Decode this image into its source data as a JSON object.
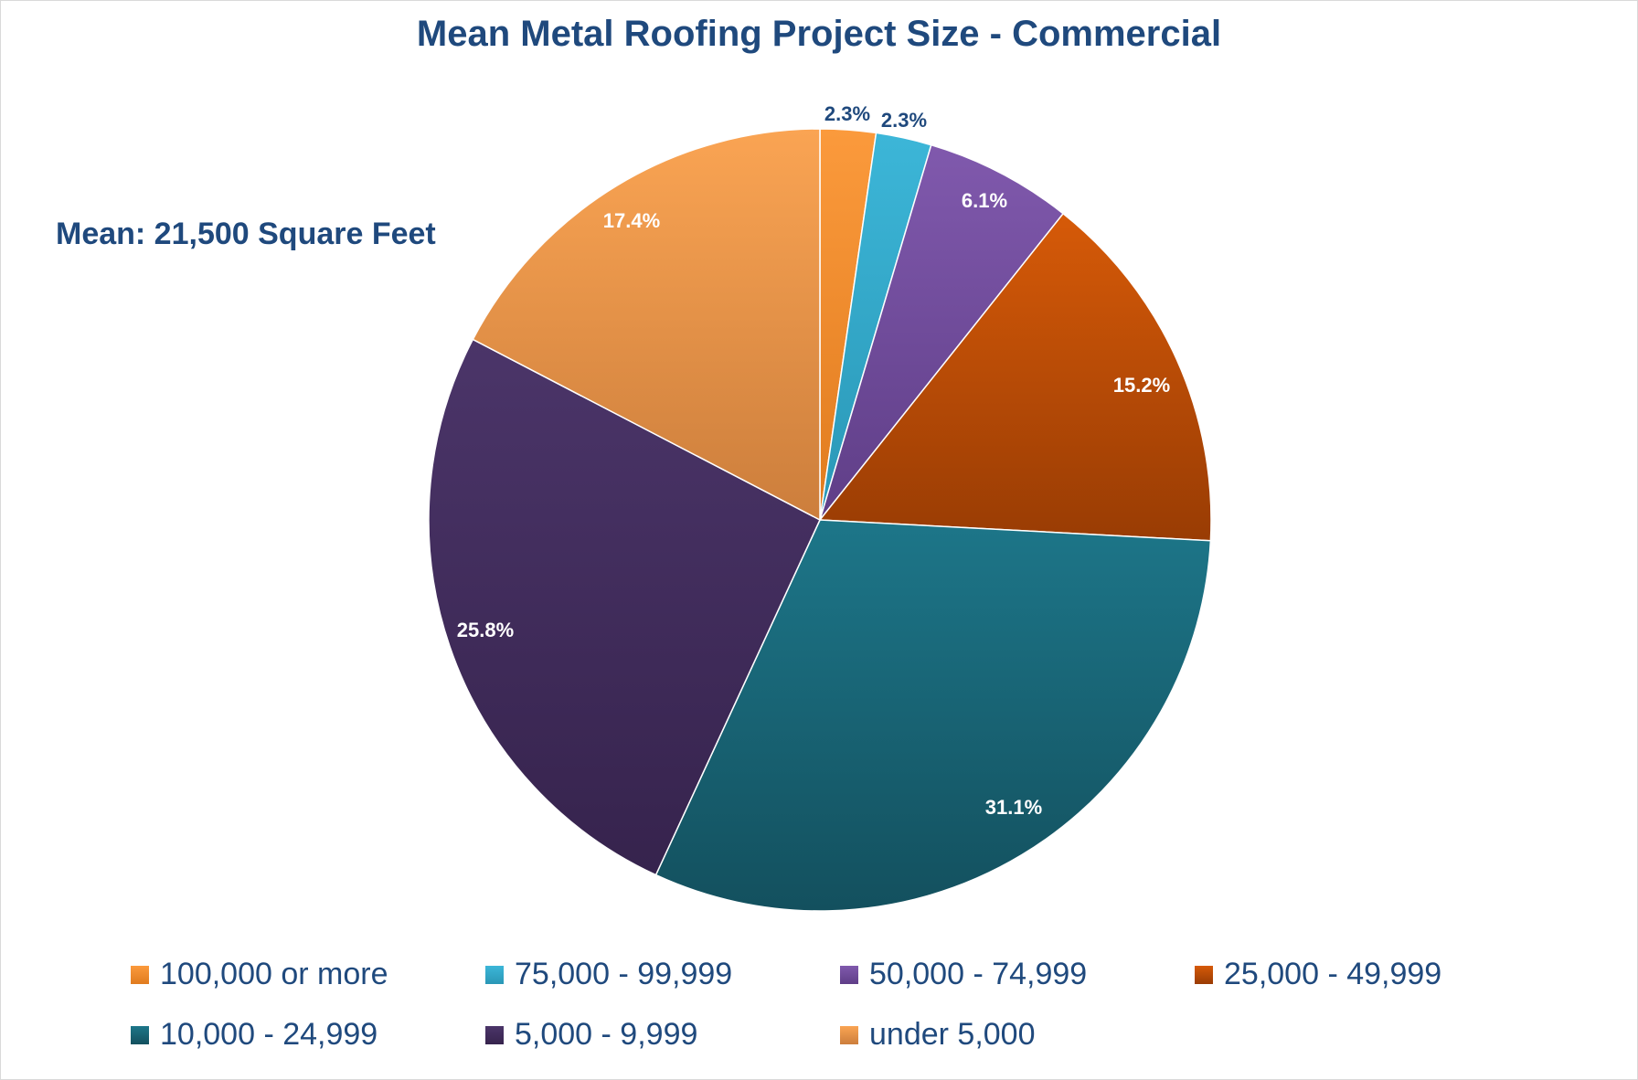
{
  "chart_data": {
    "type": "pie",
    "title": "Mean Metal Roofing Project Size - Commercial",
    "annotation": "Mean: 21,500 Square Feet",
    "start_angle_deg": 0,
    "direction": "clockwise",
    "legend_position": "bottom",
    "slices": [
      {
        "label": "100,000 or more",
        "value": 2.3,
        "display": "2.3%",
        "color_top": "#fb9a3c",
        "color_bottom": "#e07b1e",
        "label_color": "#1f497d",
        "label_outside": true
      },
      {
        "label": "75,000 - 99,999",
        "value": 2.3,
        "display": "2.3%",
        "color_top": "#3cb6d8",
        "color_bottom": "#2a97b6",
        "label_color": "#1f497d",
        "label_outside": true
      },
      {
        "label": "50,000 - 74,999",
        "value": 6.1,
        "display": "6.1%",
        "color_top": "#8059ad",
        "color_bottom": "#5f3e87",
        "label_color": "#ffffff",
        "label_outside": false
      },
      {
        "label": "25,000 - 49,999",
        "value": 15.2,
        "display": "15.2%",
        "color_top": "#d65a08",
        "color_bottom": "#993c04",
        "label_color": "#ffffff",
        "label_outside": false
      },
      {
        "label": "10,000 - 24,999",
        "value": 31.1,
        "display": "31.1%",
        "color_top": "#1d7689",
        "color_bottom": "#13505e",
        "label_color": "#ffffff",
        "label_outside": false
      },
      {
        "label": "5,000 - 9,999",
        "value": 25.8,
        "display": "25.8%",
        "color_top": "#4b3569",
        "color_bottom": "#36234d",
        "label_color": "#ffffff",
        "label_outside": false
      },
      {
        "label": "under 5,000",
        "value": 17.4,
        "display": "17.4%",
        "color_top": "#faa453",
        "color_bottom": "#cc7e3c",
        "label_color": "#ffffff",
        "label_outside": false
      }
    ]
  }
}
